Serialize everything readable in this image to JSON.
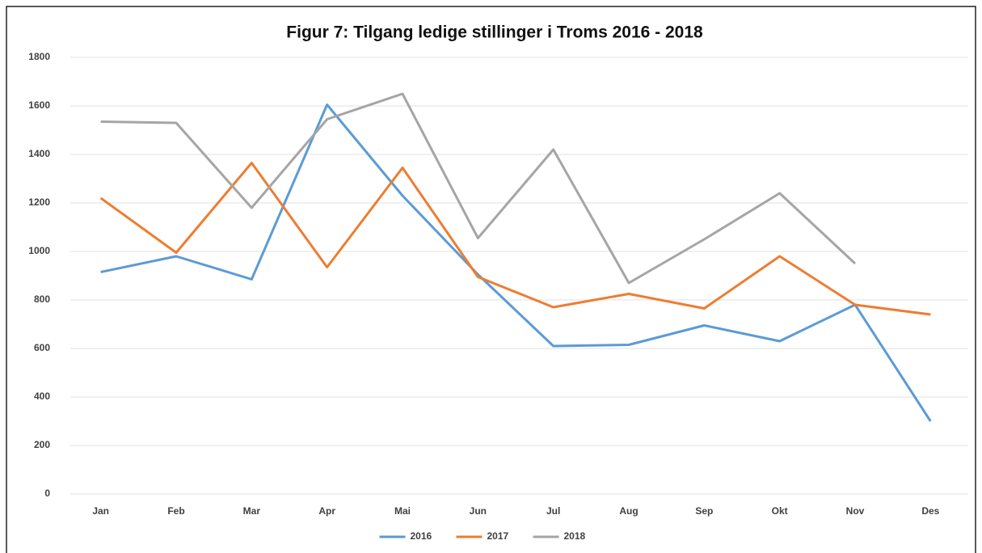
{
  "chart_data": {
    "type": "line",
    "title": "Figur 7: Tilgang ledige stillinger i Troms 2016 - 2018",
    "categories": [
      "Jan",
      "Feb",
      "Mar",
      "Apr",
      "Mai",
      "Jun",
      "Jul",
      "Aug",
      "Sep",
      "Okt",
      "Nov",
      "Des"
    ],
    "series": [
      {
        "name": "2016",
        "color": "#5b9bd5",
        "values": [
          915,
          980,
          885,
          1605,
          1230,
          905,
          610,
          615,
          695,
          630,
          780,
          300
        ]
      },
      {
        "name": "2017",
        "color": "#ed7d31",
        "values": [
          1220,
          995,
          1365,
          935,
          1345,
          895,
          770,
          825,
          765,
          980,
          780,
          740
        ]
      },
      {
        "name": "2018",
        "color": "#a5a5a5",
        "values": [
          1535,
          1530,
          1180,
          1545,
          1650,
          1055,
          1420,
          870,
          1050,
          1240,
          950,
          null
        ]
      }
    ],
    "ylim": [
      0,
      1800
    ],
    "yticks": [
      0,
      200,
      400,
      600,
      800,
      1000,
      1200,
      1400,
      1600,
      1800
    ],
    "grid": true,
    "legend": "bottom"
  }
}
